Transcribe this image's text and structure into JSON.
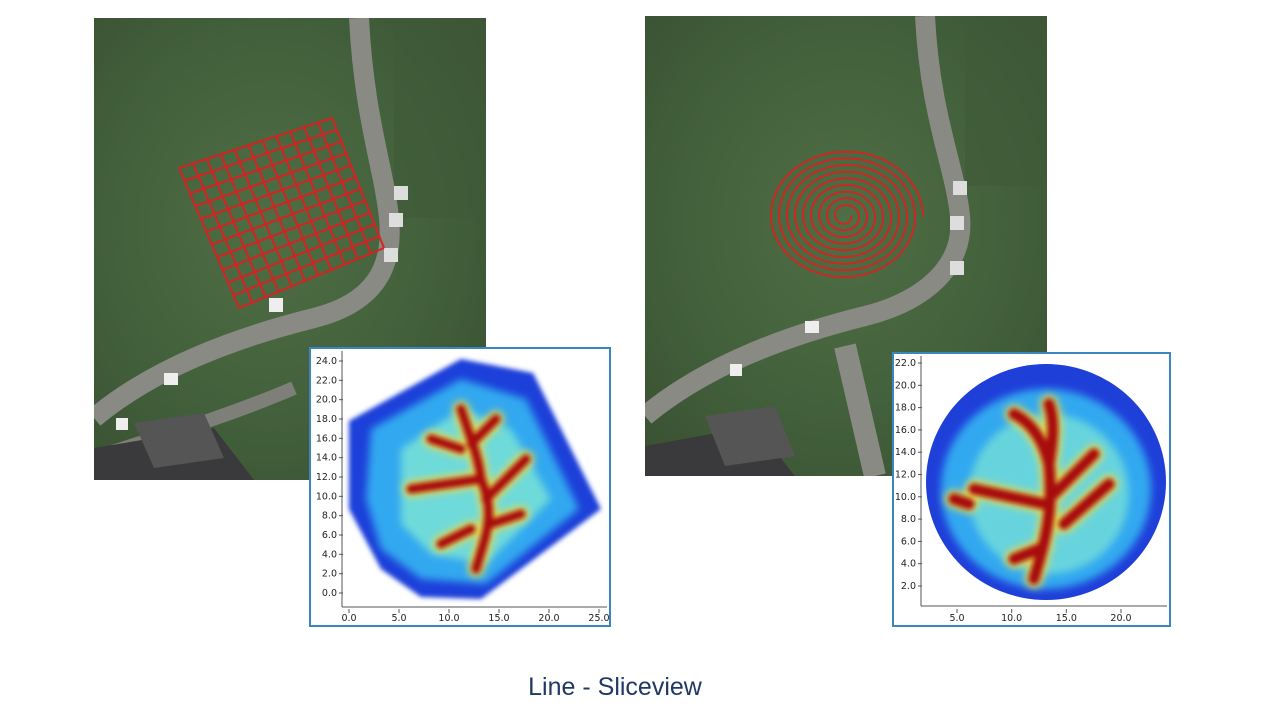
{
  "colors": {
    "grass_dark": "#3c5535",
    "grass_mid": "#4c6a42",
    "road": "#8a8a84",
    "survey_track": "#d92020",
    "plot_border": "#3a87c0",
    "caption": "#1f3864"
  },
  "left_panel": {
    "survey_pattern": "grid",
    "plot": {
      "y_ticks": [
        "24.0",
        "22.0",
        "20.0",
        "18.0",
        "16.0",
        "14.0",
        "12.0",
        "10.0",
        "8.0",
        "6.0",
        "4.0",
        "2.0",
        "0.0"
      ],
      "x_ticks": [
        "0.0",
        "5.0",
        "10.0",
        "15.0",
        "20.0",
        "25.0"
      ]
    }
  },
  "right_panel": {
    "survey_pattern": "spiral",
    "plot": {
      "y_ticks": [
        "22.0",
        "20.0",
        "18.0",
        "16.0",
        "14.0",
        "12.0",
        "10.0",
        "8.0",
        "6.0",
        "4.0",
        "2.0"
      ],
      "x_ticks": [
        "5.0",
        "10.0",
        "15.0",
        "20.0"
      ]
    }
  },
  "caption": "Line - Sliceview"
}
